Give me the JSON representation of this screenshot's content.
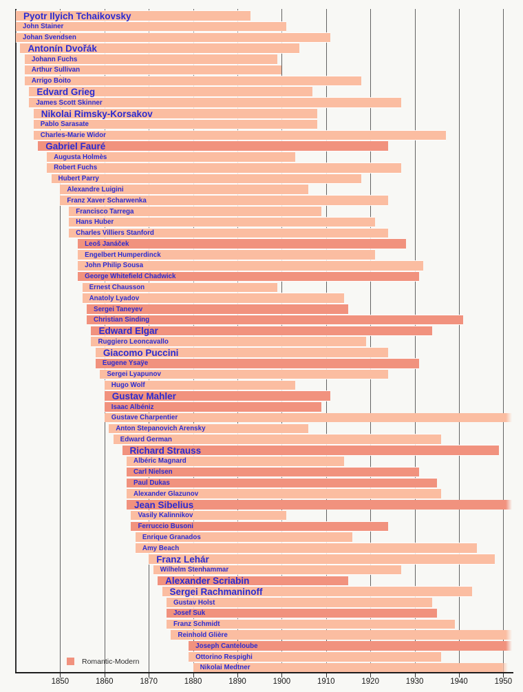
{
  "legend": {
    "label": "Romantic-Modern"
  },
  "colors": {
    "bar_light": "#fbbda1",
    "bar_dark": "#f1927e",
    "background": "#f8f8f5",
    "gridline": "#616161",
    "axis": "#1d1d1d",
    "name_text": "#2b2bd0",
    "tick_text": "#161616"
  },
  "chart_data": {
    "type": "bar",
    "variant": "timeline-lifespans-gantt",
    "title": "",
    "xlabel": "",
    "ylabel": "",
    "grid": "vertical-decade-gridlines",
    "legend_position": "bottom-left",
    "legend_entries": [
      "Romantic-Modern"
    ],
    "x_axis": {
      "range_years": [
        1840,
        1952
      ],
      "tick_years": [
        1850,
        1860,
        1870,
        1880,
        1890,
        1900,
        1910,
        1920,
        1930,
        1940,
        1950
      ],
      "tick_labels": [
        "1850",
        "1860",
        "1870",
        "1880",
        "1890",
        "1900",
        "1910",
        "1920",
        "1930",
        "1940",
        "1950"
      ]
    },
    "note": "Each bar is a composer lifespan (birth to death year). shade = bar tone in source image; major = larger name font; bars for deaths after 1950 are clipped at the right plot edge with a fade.",
    "series": [
      {
        "name": "Pyotr Ilyich Tchaikovsky",
        "birth": 1840,
        "death": 1893,
        "shade": "light",
        "major": true
      },
      {
        "name": "John Stainer",
        "birth": 1840,
        "death": 1901,
        "shade": "light",
        "major": false
      },
      {
        "name": "Johan Svendsen",
        "birth": 1840,
        "death": 1911,
        "shade": "light",
        "major": false
      },
      {
        "name": "Antonín Dvořák",
        "birth": 1841,
        "death": 1904,
        "shade": "light",
        "major": true
      },
      {
        "name": "Johann Fuchs",
        "birth": 1842,
        "death": 1899,
        "shade": "light",
        "major": false
      },
      {
        "name": "Arthur Sullivan",
        "birth": 1842,
        "death": 1900,
        "shade": "light",
        "major": false
      },
      {
        "name": "Arrigo Boito",
        "birth": 1842,
        "death": 1918,
        "shade": "light",
        "major": false
      },
      {
        "name": "Edvard Grieg",
        "birth": 1843,
        "death": 1907,
        "shade": "light",
        "major": true
      },
      {
        "name": "James Scott Skinner",
        "birth": 1843,
        "death": 1927,
        "shade": "light",
        "major": false
      },
      {
        "name": "Nikolai Rimsky-Korsakov",
        "birth": 1844,
        "death": 1908,
        "shade": "light",
        "major": true
      },
      {
        "name": "Pablo Sarasate",
        "birth": 1844,
        "death": 1908,
        "shade": "light",
        "major": false
      },
      {
        "name": "Charles-Marie Widor",
        "birth": 1844,
        "death": 1937,
        "shade": "light",
        "major": false
      },
      {
        "name": "Gabriel Fauré",
        "birth": 1845,
        "death": 1924,
        "shade": "dark",
        "major": true
      },
      {
        "name": "Augusta Holmès",
        "birth": 1847,
        "death": 1903,
        "shade": "light",
        "major": false
      },
      {
        "name": "Robert Fuchs",
        "birth": 1847,
        "death": 1927,
        "shade": "light",
        "major": false
      },
      {
        "name": "Hubert Parry",
        "birth": 1848,
        "death": 1918,
        "shade": "light",
        "major": false
      },
      {
        "name": "Alexandre Luigini",
        "birth": 1850,
        "death": 1906,
        "shade": "light",
        "major": false
      },
      {
        "name": "Franz Xaver Scharwenka",
        "birth": 1850,
        "death": 1924,
        "shade": "light",
        "major": false
      },
      {
        "name": "Francisco Tarrega",
        "birth": 1852,
        "death": 1909,
        "shade": "light",
        "major": false
      },
      {
        "name": "Hans Huber",
        "birth": 1852,
        "death": 1921,
        "shade": "light",
        "major": false
      },
      {
        "name": "Charles Villiers Stanford",
        "birth": 1852,
        "death": 1924,
        "shade": "light",
        "major": false
      },
      {
        "name": "Leoš Janáček",
        "birth": 1854,
        "death": 1928,
        "shade": "dark",
        "major": false
      },
      {
        "name": "Engelbert Humperdinck",
        "birth": 1854,
        "death": 1921,
        "shade": "light",
        "major": false
      },
      {
        "name": "John Philip Sousa",
        "birth": 1854,
        "death": 1932,
        "shade": "light",
        "major": false
      },
      {
        "name": "George Whitefield Chadwick",
        "birth": 1854,
        "death": 1931,
        "shade": "dark",
        "major": false
      },
      {
        "name": "Ernest Chausson",
        "birth": 1855,
        "death": 1899,
        "shade": "light",
        "major": false
      },
      {
        "name": "Anatoly Lyadov",
        "birth": 1855,
        "death": 1914,
        "shade": "light",
        "major": false
      },
      {
        "name": "Sergei Taneyev",
        "birth": 1856,
        "death": 1915,
        "shade": "dark",
        "major": false
      },
      {
        "name": "Christian Sinding",
        "birth": 1856,
        "death": 1941,
        "shade": "dark",
        "major": false
      },
      {
        "name": "Edward Elgar",
        "birth": 1857,
        "death": 1934,
        "shade": "dark",
        "major": true
      },
      {
        "name": "Ruggiero Leoncavallo",
        "birth": 1857,
        "death": 1919,
        "shade": "light",
        "major": false
      },
      {
        "name": "Giacomo Puccini",
        "birth": 1858,
        "death": 1924,
        "shade": "light",
        "major": true
      },
      {
        "name": "Eugene Ysaÿe",
        "birth": 1858,
        "death": 1931,
        "shade": "dark",
        "major": false
      },
      {
        "name": "Sergei Lyapunov",
        "birth": 1859,
        "death": 1924,
        "shade": "light",
        "major": false
      },
      {
        "name": "Hugo Wolf",
        "birth": 1860,
        "death": 1903,
        "shade": "light",
        "major": false
      },
      {
        "name": "Gustav Mahler",
        "birth": 1860,
        "death": 1911,
        "shade": "dark",
        "major": true
      },
      {
        "name": "Isaac Albéniz",
        "birth": 1860,
        "death": 1909,
        "shade": "dark",
        "major": false
      },
      {
        "name": "Gustave Charpentier",
        "birth": 1860,
        "death": 1956,
        "shade": "light",
        "major": false
      },
      {
        "name": "Anton Stepanovich Arensky",
        "birth": 1861,
        "death": 1906,
        "shade": "light",
        "major": false
      },
      {
        "name": "Edward German",
        "birth": 1862,
        "death": 1936,
        "shade": "light",
        "major": false
      },
      {
        "name": "Richard Strauss",
        "birth": 1864,
        "death": 1949,
        "shade": "dark",
        "major": true
      },
      {
        "name": "Albéric Magnard",
        "birth": 1865,
        "death": 1914,
        "shade": "light",
        "major": false
      },
      {
        "name": "Carl Nielsen",
        "birth": 1865,
        "death": 1931,
        "shade": "dark",
        "major": false
      },
      {
        "name": "Paul Dukas",
        "birth": 1865,
        "death": 1935,
        "shade": "dark",
        "major": false
      },
      {
        "name": "Alexander Glazunov",
        "birth": 1865,
        "death": 1936,
        "shade": "light",
        "major": false
      },
      {
        "name": "Jean Sibelius",
        "birth": 1865,
        "death": 1957,
        "shade": "dark",
        "major": true
      },
      {
        "name": "Vasily Kalinnikov",
        "birth": 1866,
        "death": 1901,
        "shade": "light",
        "major": false
      },
      {
        "name": "Ferruccio Busoni",
        "birth": 1866,
        "death": 1924,
        "shade": "dark",
        "major": false
      },
      {
        "name": "Enrique Granados",
        "birth": 1867,
        "death": 1916,
        "shade": "light",
        "major": false
      },
      {
        "name": "Amy Beach",
        "birth": 1867,
        "death": 1944,
        "shade": "light",
        "major": false
      },
      {
        "name": "Franz Lehár",
        "birth": 1870,
        "death": 1948,
        "shade": "light",
        "major": true
      },
      {
        "name": "Wilhelm Stenhammar",
        "birth": 1871,
        "death": 1927,
        "shade": "light",
        "major": false
      },
      {
        "name": "Alexander Scriabin",
        "birth": 1872,
        "death": 1915,
        "shade": "dark",
        "major": true
      },
      {
        "name": "Sergei Rachmaninoff",
        "birth": 1873,
        "death": 1943,
        "shade": "light",
        "major": true
      },
      {
        "name": "Gustav Holst",
        "birth": 1874,
        "death": 1934,
        "shade": "light",
        "major": false
      },
      {
        "name": "Josef Suk",
        "birth": 1874,
        "death": 1935,
        "shade": "dark",
        "major": false
      },
      {
        "name": "Franz Schmidt",
        "birth": 1874,
        "death": 1939,
        "shade": "light",
        "major": false
      },
      {
        "name": "Reinhold Glière",
        "birth": 1875,
        "death": 1956,
        "shade": "light",
        "major": false
      },
      {
        "name": "Joseph Canteloube",
        "birth": 1879,
        "death": 1957,
        "shade": "dark",
        "major": false
      },
      {
        "name": "Ottorino Respighi",
        "birth": 1879,
        "death": 1936,
        "shade": "light",
        "major": false
      },
      {
        "name": "Nikolai Medtner",
        "birth": 1880,
        "death": 1951,
        "shade": "light",
        "major": false
      }
    ]
  }
}
